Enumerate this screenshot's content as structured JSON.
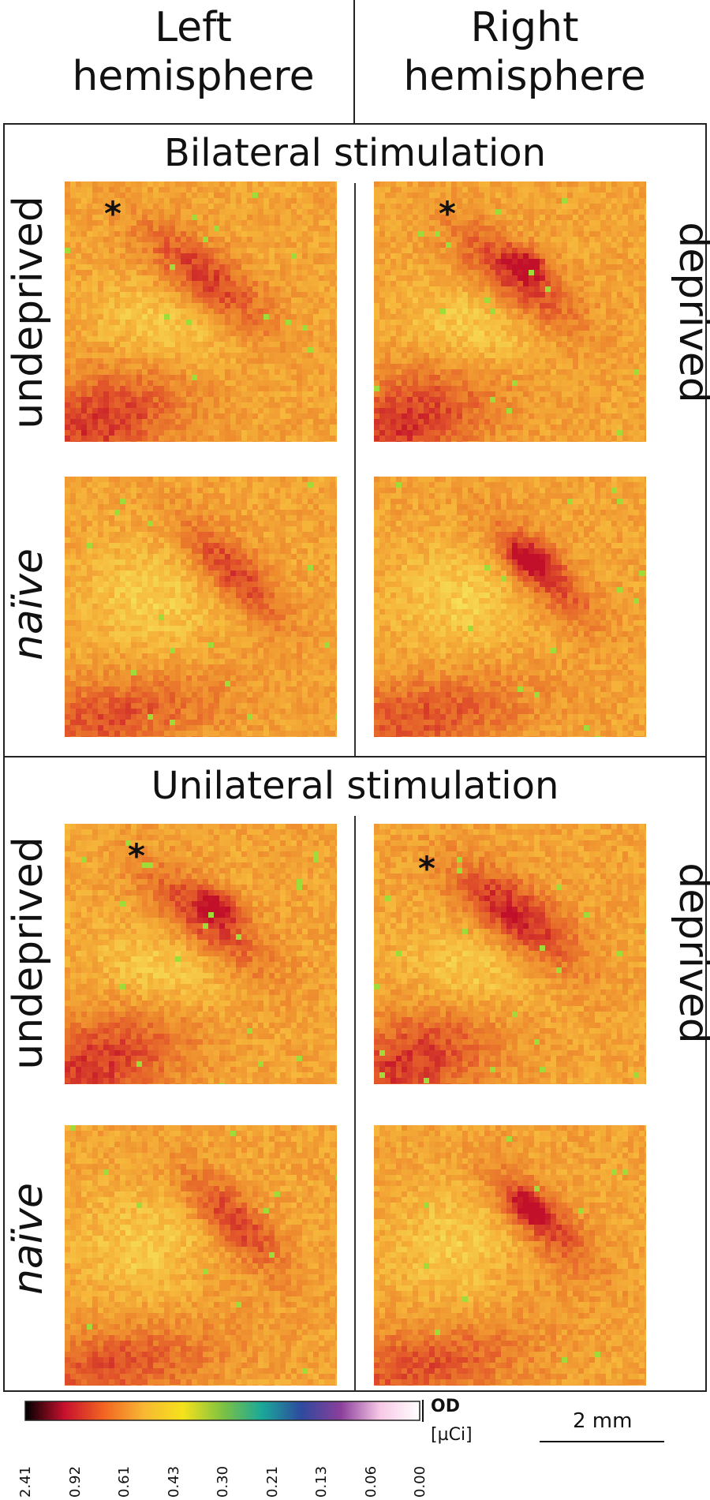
{
  "columns": {
    "left": "Left\nhemisphere",
    "right": "Right\nhemisphere"
  },
  "sections": [
    {
      "title": "Bilateral stimulation",
      "rows": [
        {
          "left_label": "undeprived",
          "right_label": "deprived",
          "asterisk": "*"
        },
        {
          "left_label": "naïve",
          "right_label": ""
        }
      ]
    },
    {
      "title": "Unilateral stimulation",
      "rows": [
        {
          "left_label": "undeprived",
          "right_label": "deprived",
          "asterisk": "*"
        },
        {
          "left_label": "naïve",
          "right_label": ""
        }
      ]
    }
  ],
  "colorbar": {
    "ticks": [
      "2.41",
      "0.92",
      "0.61",
      "0.43",
      "0.30",
      "0.21",
      "0.13",
      "0.06",
      "0.00"
    ],
    "od_label": "OD",
    "unit_label": "[µCi]",
    "colors": [
      "#000000",
      "#c8102e",
      "#f26522",
      "#f7b733",
      "#f5e21b",
      "#7fc241",
      "#1aa89a",
      "#2e4a9e",
      "#8a3f9b",
      "#f8c8e6",
      "#ffffff"
    ]
  },
  "scale_bar": {
    "label": "2 mm"
  },
  "heatmap_colors": {
    "base": "#f6b53a",
    "light": "#f7dc55",
    "mid": "#ee8a2e",
    "dark": "#e2542a",
    "hot": "#c2102a",
    "green": "#9fdc3a"
  }
}
